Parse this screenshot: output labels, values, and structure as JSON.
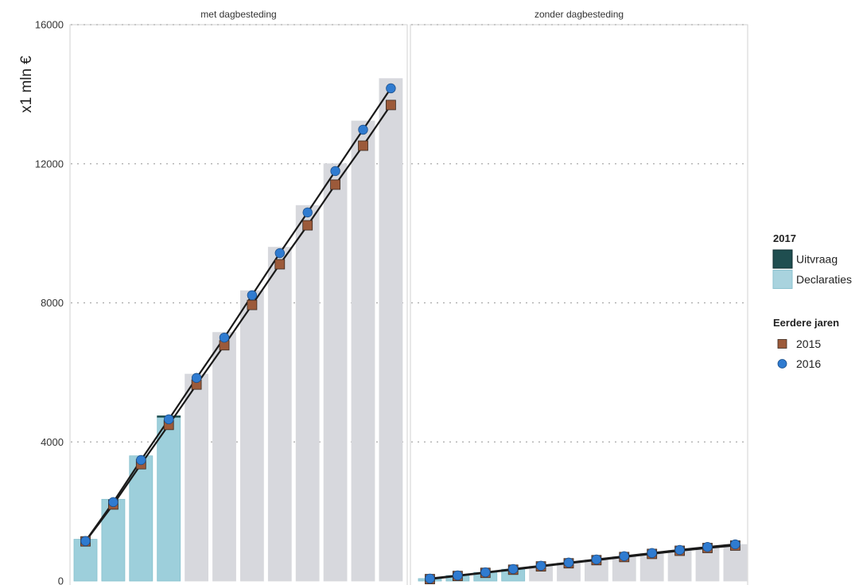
{
  "chart_data": {
    "type": "bar",
    "ylabel": "x1 mln €",
    "xlabel": "",
    "ylim": [
      0,
      16000
    ],
    "y_ticks": [
      0,
      4000,
      8000,
      12000,
      16000
    ],
    "grid": true,
    "legend_position": "right",
    "legend": {
      "groups": [
        {
          "title": "2017",
          "items": [
            {
              "label": "Uitvraag",
              "shape": "swatch",
              "color": "#1f4e50",
              "edge_color": "#0f2e30"
            },
            {
              "label": "Declaraties",
              "shape": "swatch",
              "color": "#a9d3de",
              "edge_color": "#8cc2cf"
            }
          ]
        },
        {
          "title": "Eerdere jaren",
          "items": [
            {
              "label": "2015",
              "shape": "square",
              "color": "#9c5a3a",
              "edge_color": "#3b2a20"
            },
            {
              "label": "2016",
              "shape": "circle",
              "color": "#2f7bd0",
              "edge_color": "#1c4f8a"
            }
          ]
        }
      ]
    },
    "facets": [
      {
        "title": "met dagbesteding",
        "series": [
          {
            "name": "Declaraties",
            "type": "bar",
            "color": "#9dcfdb",
            "edge_color": "#86c0cd",
            "values": [
              1200,
              2350,
              3600,
              4710,
              null,
              null,
              null,
              null,
              null,
              null,
              null,
              null
            ]
          },
          {
            "name": "Uitvraag",
            "type": "bar",
            "color": "#1f4e50",
            "edge_color": "#1f4e50",
            "values": [
              null,
              null,
              null,
              40,
              null,
              null,
              null,
              null,
              null,
              null,
              null,
              null
            ]
          },
          {
            "type": "bar",
            "color": "#d7d8dd",
            "edge_color": "#d7d8dd",
            "values": [
              null,
              null,
              null,
              null,
              5950,
              7150,
              8350,
              9600,
              10800,
              12000,
              13230,
              14450
            ]
          },
          {
            "name": "2015",
            "type": "line",
            "marker": "square",
            "color": "#9c5a3a",
            "edge_color": "#3b2a20",
            "line_color": "#1a1a1a",
            "values": [
              1140,
              2200,
              3360,
              4490,
              5650,
              6780,
              7940,
              9110,
              10230,
              11400,
              12520,
              13690
            ]
          },
          {
            "name": "2016",
            "type": "line",
            "marker": "circle",
            "color": "#2f7bd0",
            "edge_color": "#1c4f8a",
            "line_color": "#1a1a1a",
            "values": [
              1150,
              2270,
              3480,
              4650,
              5840,
              7000,
              8220,
              9430,
              10600,
              11790,
              12980,
              14170
            ]
          }
        ]
      },
      {
        "title": "zonder dagbesteding",
        "series": [
          {
            "name": "Declaraties",
            "type": "bar",
            "color": "#9dcfdb",
            "edge_color": "#86c0cd",
            "values": [
              70,
              160,
              250,
              340,
              null,
              null,
              null,
              null,
              null,
              null,
              null,
              null
            ]
          },
          {
            "type": "bar",
            "color": "#d7d8dd",
            "edge_color": "#d7d8dd",
            "values": [
              null,
              null,
              null,
              null,
              430,
              520,
              610,
              700,
              790,
              880,
              960,
              1050
            ]
          },
          {
            "name": "2015",
            "type": "line",
            "marker": "square",
            "color": "#9c5a3a",
            "edge_color": "#3b2a20",
            "line_color": "#1a1a1a",
            "values": [
              55,
              145,
              235,
              325,
              420,
              510,
              600,
              690,
              780,
              870,
              950,
              1020
            ]
          },
          {
            "name": "2016",
            "type": "line",
            "marker": "circle",
            "color": "#2f7bd0",
            "edge_color": "#1c4f8a",
            "line_color": "#1a1a1a",
            "values": [
              70,
              160,
              250,
              345,
              440,
              530,
              620,
              715,
              805,
              895,
              980,
              1055
            ]
          }
        ]
      }
    ]
  }
}
